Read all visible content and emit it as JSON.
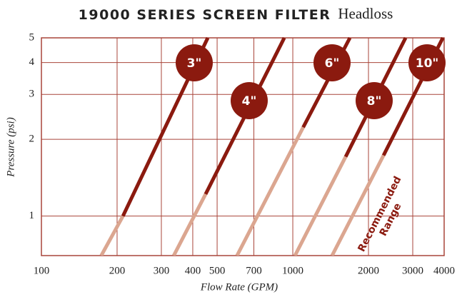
{
  "chart_data": {
    "type": "line",
    "title": "19000 SERIES SCREEN FILTER",
    "subtitle": "Headloss",
    "x_label": "Flow Rate (GPM)",
    "y_label": "Pressure (psi)",
    "xscale": "log",
    "yscale": "log",
    "grid": true,
    "xlim": [
      100,
      4000
    ],
    "ylim": [
      0.7,
      5
    ],
    "xticks": [
      100,
      200,
      300,
      400,
      500,
      700,
      1000,
      2000,
      3000,
      4000
    ],
    "yticks": [
      1,
      2,
      3,
      4,
      5
    ],
    "light_color": "#dba690",
    "color": "#8b1a0f",
    "annotation_lines": [
      "Recommended",
      "Range"
    ],
    "series": [
      {
        "name": "3\"",
        "x": [
          173,
          211,
          459
        ],
        "values": [
          0.7,
          1,
          5
        ]
      },
      {
        "name": "4\"",
        "x": [
          336,
          450,
          925
        ],
        "values": [
          0.7,
          1.22,
          5
        ]
      },
      {
        "name": "6\"",
        "x": [
          600,
          1100,
          1687
        ],
        "values": [
          0.7,
          2.23,
          5
        ]
      },
      {
        "name": "8\"",
        "x": [
          1020,
          1623,
          2810
        ],
        "values": [
          0.7,
          1.71,
          5
        ]
      },
      {
        "name": "10\"",
        "x": [
          1433,
          2296,
          3953
        ],
        "values": [
          0.7,
          1.73,
          5
        ]
      }
    ]
  }
}
